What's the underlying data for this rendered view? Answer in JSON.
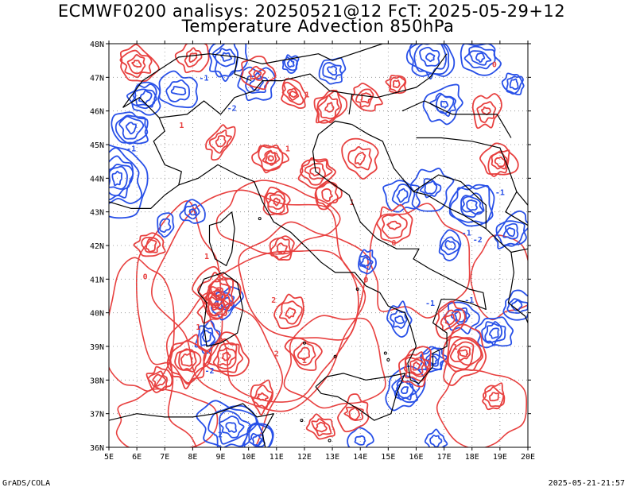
{
  "header": {
    "title_line1": "ECMWF0200 analisys: 20250521@12 FcT: 2025-05-29+12",
    "title_line2": "Temperature Advection 850hPa"
  },
  "map": {
    "lon_labels": [
      "5E",
      "6E",
      "7E",
      "8E",
      "9E",
      "10E",
      "11E",
      "12E",
      "13E",
      "14E",
      "15E",
      "16E",
      "17E",
      "18E",
      "19E",
      "20E"
    ],
    "lat_labels": [
      "48N",
      "47N",
      "46N",
      "45N",
      "44N",
      "43N",
      "42N",
      "41N",
      "40N",
      "39N",
      "38N",
      "37N",
      "36N"
    ],
    "colors": {
      "warm_advection": "#e8403f",
      "cold_advection": "#2850e8",
      "coastline": "#000000",
      "grid": "#888888"
    },
    "contour_labels": [
      "-1",
      "-2",
      "1",
      "2",
      "3",
      "0"
    ]
  },
  "footer": {
    "left": "GrADS/COLA",
    "right": "2025-05-21-21:57"
  }
}
